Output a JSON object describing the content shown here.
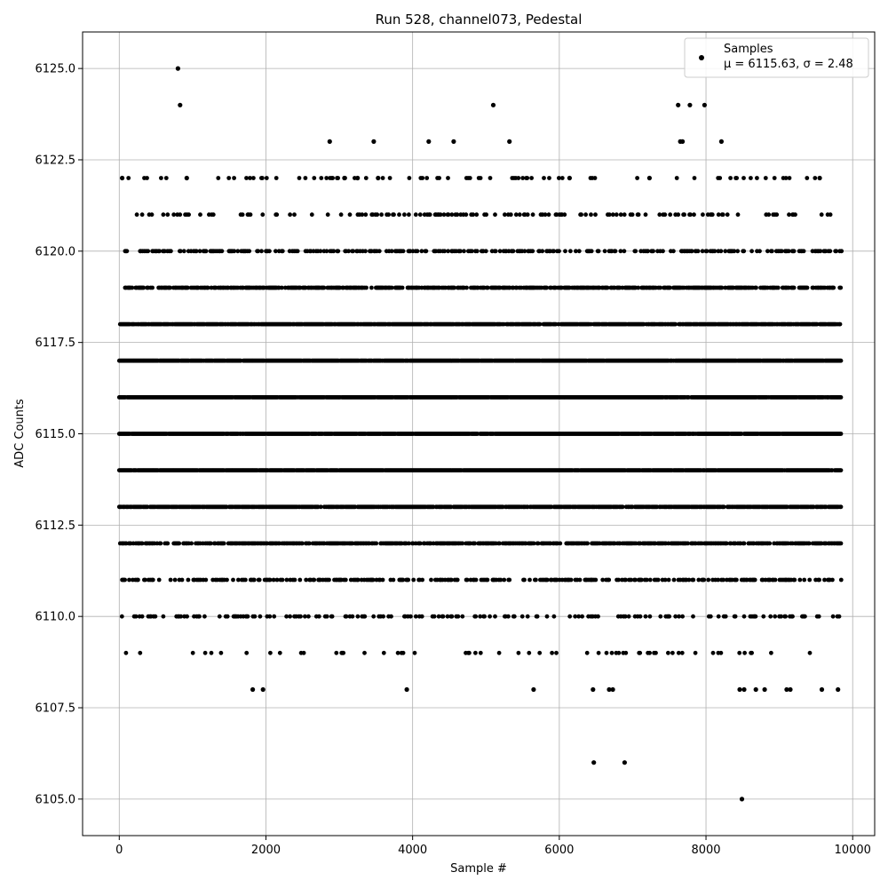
{
  "chart_data": {
    "type": "scatter",
    "title": "Run 528, channel073, Pedestal",
    "xlabel": "Sample #",
    "ylabel": "ADC Counts",
    "xlim": [
      -500,
      10300
    ],
    "ylim": [
      6104.0,
      6126.0
    ],
    "x_ticks": [
      0,
      2000,
      4000,
      6000,
      8000,
      10000
    ],
    "y_ticks": [
      6105.0,
      6107.5,
      6110.0,
      6112.5,
      6115.0,
      6117.5,
      6120.0,
      6122.5,
      6125.0
    ],
    "x_tick_labels": [
      "0",
      "2000",
      "4000",
      "6000",
      "8000",
      "10000"
    ],
    "y_tick_labels": [
      "6105.0",
      "6107.5",
      "6110.0",
      "6112.5",
      "6115.0",
      "6117.5",
      "6120.0",
      "6122.5",
      "6125.0"
    ],
    "grid": true,
    "legend_position": "upper right",
    "marker_color": "#000000",
    "series": [
      {
        "name": "Samples",
        "stats_label": "μ = 6115.63, σ = 2.48",
        "x_range": [
          0,
          9850
        ],
        "level_spans": [
          {
            "y": 6114,
            "x_ranges": [
              [
                0,
                9850
              ]
            ]
          },
          {
            "y": 6115,
            "x_ranges": [
              [
                0,
                9850
              ]
            ]
          },
          {
            "y": 6116,
            "x_ranges": [
              [
                0,
                9850
              ]
            ]
          },
          {
            "y": 6117,
            "x_ranges": [
              [
                0,
                9850
              ]
            ]
          },
          {
            "y": 6113,
            "x_ranges": [
              [
                0,
                9850
              ]
            ]
          },
          {
            "y": 6118,
            "x_ranges": [
              [
                0,
                9850
              ]
            ]
          },
          {
            "y": 6112,
            "x_ranges": [
              [
                0,
                9850
              ]
            ]
          },
          {
            "y": 6119,
            "x_ranges": [
              [
                80,
                9850
              ]
            ]
          },
          {
            "y": 6120,
            "x_ranges": [
              [
                80,
                9850
              ]
            ]
          },
          {
            "y": 6111,
            "x_ranges": [
              [
                40,
                9850
              ]
            ]
          },
          {
            "y": 6121,
            "x_ranges": [
              [
                180,
                9750
              ]
            ]
          },
          {
            "y": 6110,
            "x_ranges": [
              [
                0,
                9850
              ]
            ]
          },
          {
            "y": 6109,
            "x_ranges": [
              [
                80,
                9750
              ]
            ]
          },
          {
            "y": 6122,
            "x_ranges": [
              [
                30,
                9550
              ]
            ]
          }
        ],
        "points": [
          [
            800,
            6125
          ],
          [
            830,
            6124
          ],
          [
            5100,
            6124
          ],
          [
            7620,
            6124
          ],
          [
            7780,
            6124
          ],
          [
            7980,
            6124
          ],
          [
            2870,
            6123
          ],
          [
            3470,
            6123
          ],
          [
            4220,
            6123
          ],
          [
            4560,
            6123
          ],
          [
            5320,
            6123
          ],
          [
            7650,
            6123
          ],
          [
            7680,
            6123
          ],
          [
            8210,
            6123
          ],
          [
            40,
            6122
          ],
          [
            920,
            6122
          ],
          [
            3070,
            6122
          ],
          [
            3250,
            6122
          ],
          [
            3530,
            6122
          ],
          [
            6140,
            6122
          ],
          [
            7230,
            6122
          ],
          [
            9550,
            6122
          ],
          [
            1820,
            6108
          ],
          [
            1960,
            6108
          ],
          [
            3920,
            6108
          ],
          [
            5650,
            6108
          ],
          [
            6460,
            6108
          ],
          [
            6680,
            6108
          ],
          [
            6730,
            6108
          ],
          [
            8460,
            6108
          ],
          [
            8520,
            6108
          ],
          [
            8680,
            6108
          ],
          [
            8800,
            6108
          ],
          [
            9100,
            6108
          ],
          [
            9150,
            6108
          ],
          [
            9580,
            6108
          ],
          [
            9800,
            6108
          ],
          [
            6470,
            6106
          ],
          [
            6890,
            6106
          ],
          [
            8490,
            6105
          ]
        ]
      }
    ]
  }
}
